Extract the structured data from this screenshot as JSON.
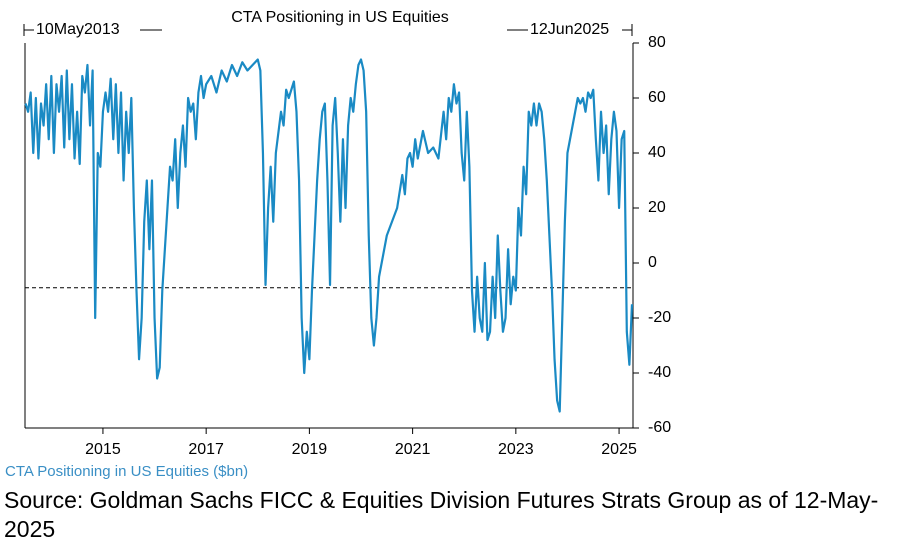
{
  "chart_data": {
    "type": "line",
    "title": "CTA Positioning in US Equities",
    "start_label": "10May2013",
    "end_label": "12Jun2025",
    "source": "Source: Goldman Sachs FICC & Equities Division Futures Strats Group as of 12-May-2025",
    "x": [
      2013.5,
      2013.55,
      2013.6,
      2013.65,
      2013.7,
      2013.75,
      2013.8,
      2013.85,
      2013.9,
      2013.95,
      2014.0,
      2014.05,
      2014.1,
      2014.15,
      2014.2,
      2014.25,
      2014.3,
      2014.35,
      2014.4,
      2014.45,
      2014.5,
      2014.55,
      2014.6,
      2014.65,
      2014.7,
      2014.75,
      2014.8,
      2014.85,
      2014.9,
      2014.95,
      2015.0,
      2015.05,
      2015.1,
      2015.15,
      2015.2,
      2015.25,
      2015.3,
      2015.35,
      2015.4,
      2015.45,
      2015.5,
      2015.55,
      2015.6,
      2015.65,
      2015.7,
      2015.75,
      2015.8,
      2015.85,
      2015.9,
      2015.95,
      2016.0,
      2016.05,
      2016.1,
      2016.15,
      2016.2,
      2016.25,
      2016.3,
      2016.35,
      2016.4,
      2016.45,
      2016.5,
      2016.55,
      2016.6,
      2016.65,
      2016.7,
      2016.75,
      2016.8,
      2016.85,
      2016.9,
      2016.95,
      2017.0,
      2017.1,
      2017.2,
      2017.3,
      2017.4,
      2017.5,
      2017.6,
      2017.7,
      2017.8,
      2017.9,
      2018.0,
      2018.05,
      2018.1,
      2018.15,
      2018.2,
      2018.25,
      2018.3,
      2018.35,
      2018.45,
      2018.5,
      2018.55,
      2018.6,
      2018.7,
      2018.75,
      2018.8,
      2018.85,
      2018.9,
      2018.95,
      2019.0,
      2019.05,
      2019.1,
      2019.15,
      2019.2,
      2019.25,
      2019.3,
      2019.35,
      2019.4,
      2019.45,
      2019.5,
      2019.55,
      2019.6,
      2019.65,
      2019.7,
      2019.75,
      2019.8,
      2019.85,
      2019.9,
      2019.95,
      2020.0,
      2020.05,
      2020.1,
      2020.15,
      2020.2,
      2020.25,
      2020.3,
      2020.35,
      2020.4,
      2020.5,
      2020.6,
      2020.7,
      2020.8,
      2020.85,
      2020.9,
      2020.95,
      2021.0,
      2021.05,
      2021.1,
      2021.2,
      2021.3,
      2021.4,
      2021.5,
      2021.6,
      2021.65,
      2021.7,
      2021.75,
      2021.8,
      2021.85,
      2021.9,
      2021.95,
      2022.0,
      2022.05,
      2022.1,
      2022.15,
      2022.2,
      2022.25,
      2022.3,
      2022.35,
      2022.4,
      2022.45,
      2022.5,
      2022.55,
      2022.6,
      2022.65,
      2022.7,
      2022.75,
      2022.8,
      2022.85,
      2022.9,
      2022.95,
      2023.0,
      2023.05,
      2023.1,
      2023.15,
      2023.2,
      2023.25,
      2023.3,
      2023.35,
      2023.4,
      2023.45,
      2023.5,
      2023.55,
      2023.6,
      2023.65,
      2023.7,
      2023.75,
      2023.8,
      2023.85,
      2023.9,
      2023.95,
      2024.0,
      2024.05,
      2024.1,
      2024.15,
      2024.2,
      2024.25,
      2024.3,
      2024.35,
      2024.4,
      2024.45,
      2024.5,
      2024.55,
      2024.6,
      2024.65,
      2024.7,
      2024.75,
      2024.8,
      2024.85,
      2024.9,
      2024.95,
      2025.0,
      2025.05,
      2025.1,
      2025.15,
      2025.2,
      2025.25
    ],
    "series": [
      {
        "name": "CTA Positioning in US Equities ($bn)",
        "color": "#1a8ac4",
        "values": [
          58,
          55,
          62,
          40,
          60,
          38,
          58,
          50,
          65,
          45,
          68,
          40,
          65,
          55,
          68,
          42,
          70,
          45,
          65,
          38,
          55,
          36,
          68,
          62,
          72,
          50,
          70,
          -20,
          40,
          35,
          55,
          62,
          55,
          67,
          45,
          65,
          40,
          62,
          30,
          55,
          40,
          60,
          20,
          -10,
          -35,
          -20,
          15,
          30,
          5,
          30,
          -20,
          -42,
          -38,
          -10,
          5,
          20,
          35,
          30,
          45,
          20,
          40,
          50,
          35,
          60,
          55,
          58,
          45,
          62,
          68,
          60,
          65,
          68,
          62,
          70,
          66,
          72,
          68,
          73,
          70,
          72,
          74,
          70,
          40,
          -8,
          20,
          35,
          15,
          40,
          55,
          50,
          63,
          60,
          66,
          55,
          30,
          -20,
          -40,
          -25,
          -35,
          -10,
          10,
          30,
          45,
          55,
          58,
          30,
          -8,
          50,
          60,
          40,
          15,
          45,
          20,
          50,
          60,
          55,
          65,
          72,
          74,
          70,
          55,
          10,
          -20,
          -30,
          -20,
          -5,
          0,
          10,
          15,
          20,
          32,
          25,
          38,
          40,
          35,
          45,
          38,
          48,
          40,
          42,
          38,
          55,
          45,
          60,
          55,
          65,
          58,
          62,
          40,
          30,
          55,
          35,
          -10,
          -25,
          -5,
          -20,
          -25,
          0,
          -28,
          -25,
          -5,
          -20,
          10,
          -10,
          -25,
          -20,
          5,
          -15,
          -5,
          -10,
          20,
          10,
          35,
          25,
          55,
          50,
          58,
          50,
          58,
          55,
          45,
          30,
          10,
          -10,
          -35,
          -50,
          -54,
          -20,
          15,
          40,
          45,
          50,
          55,
          60,
          58,
          60,
          55,
          62,
          60,
          63,
          45,
          30,
          55,
          40,
          50,
          25,
          45,
          55,
          48,
          20,
          45,
          48,
          -25,
          -37,
          -15
        ]
      }
    ],
    "reference_line": -9,
    "xlim": [
      2013.49,
      2025.27
    ],
    "xticks": [
      2015,
      2017,
      2019,
      2021,
      2023,
      2025
    ],
    "ylim": [
      -60,
      80
    ],
    "yticks": [
      80,
      60,
      40,
      20,
      0,
      -20,
      -40,
      -60
    ]
  }
}
